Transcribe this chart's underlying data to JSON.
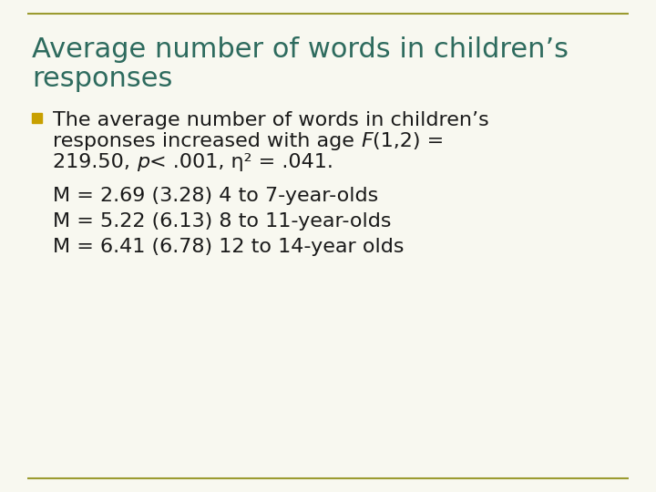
{
  "title_line1": "Average number of words in children’s",
  "title_line2": "responses",
  "title_color": "#2E6B5E",
  "title_fontsize": 22,
  "background_color": "#F8F8F0",
  "border_color": "#9B9B30",
  "bullet_color": "#C8A000",
  "text_color": "#1A1A1A",
  "bullet_fontsize": 16,
  "body_fontsize": 16,
  "bullet_line1": "The average number of words in children’s",
  "bullet_line2_pre": "responses increased with age ",
  "bullet_line2_F": "F",
  "bullet_line2_post": "(1,2) =",
  "bullet_line3_pre": "219.50, ",
  "bullet_line3_p": "p",
  "bullet_line3_post": "< .001, η² = .041.",
  "body_lines": [
    "M = 2.69 (3.28) 4 to 7-year-olds",
    "M = 5.22 (6.13) 8 to 11-year-olds",
    "M = 6.41 (6.78) 12 to 14-year olds"
  ]
}
